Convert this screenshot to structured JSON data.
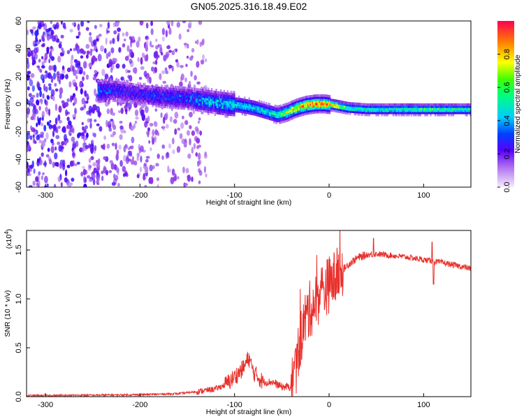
{
  "title": "GN05.2025.316.18.49.E02",
  "chart_data": [
    {
      "type": "heatmap",
      "title": "GN05.2025.316.18.49.E02",
      "xlabel": "Height of straight line (km)",
      "ylabel": "Frequency (Hz)",
      "xlim": [
        -320,
        150
      ],
      "ylim": [
        -60,
        60
      ],
      "x_ticks": [
        -300,
        -200,
        -100,
        0,
        100
      ],
      "y_ticks": [
        -60,
        -40,
        -20,
        0,
        20,
        40,
        60
      ],
      "colorbar": {
        "label": "Normalized spectral amplitude",
        "range": [
          0.0,
          1.0
        ],
        "ticks": [
          0.0,
          0.2,
          0.4,
          0.6,
          0.8
        ],
        "colormap": [
          "#f0e6ff",
          "#8a2be2",
          "#3a00ff",
          "#0060ff",
          "#00e0ff",
          "#00ff60",
          "#ffff00",
          "#ff8000",
          "#ff0040"
        ]
      },
      "ridge": {
        "x": [
          -245,
          -230,
          -215,
          -200,
          -185,
          -170,
          -150,
          -130,
          -110,
          -95,
          -80,
          -65,
          -55,
          -45,
          -35,
          -25,
          -15,
          -5,
          5,
          20,
          40,
          60,
          80,
          100,
          120,
          150
        ],
        "y": [
          10,
          11,
          10,
          8,
          7,
          6,
          5,
          3,
          1,
          0,
          -2,
          -5,
          -7,
          -5,
          -2,
          0,
          1,
          1,
          0,
          -2,
          -3,
          -3,
          -3,
          -3,
          -3,
          -3
        ],
        "amp": [
          0.35,
          0.3,
          0.25,
          0.25,
          0.3,
          0.3,
          0.35,
          0.45,
          0.5,
          0.5,
          0.5,
          0.5,
          0.6,
          0.7,
          0.8,
          0.85,
          0.9,
          0.85,
          0.8,
          0.6,
          0.55,
          0.55,
          0.6,
          0.6,
          0.6,
          0.55
        ]
      },
      "noise_extent_km": [
        -320,
        -130
      ]
    },
    {
      "type": "line",
      "xlabel": "Height of straight line (km)",
      "ylabel": "SNR (10 * v/v)",
      "y_multiplier": "(x10",
      "y_multiplier_exp": "4",
      "xlim": [
        -320,
        150
      ],
      "ylim": [
        0,
        1.7
      ],
      "x_ticks": [
        -300,
        -200,
        -100,
        0,
        100
      ],
      "y_ticks": [
        0.0,
        0.5,
        1.0,
        1.5
      ],
      "color": "#e8302c",
      "series": [
        {
          "x": [
            -320,
            -250,
            -200,
            -160,
            -140,
            -120,
            -110,
            -100,
            -90,
            -85,
            -80,
            -70,
            -60,
            -50,
            -40,
            -35,
            -30,
            -25,
            -20,
            -15,
            -10,
            -5,
            0,
            5,
            10,
            15,
            20,
            30,
            40,
            50,
            60,
            80,
            100,
            120,
            150
          ],
          "y": [
            0.01,
            0.015,
            0.02,
            0.03,
            0.05,
            0.08,
            0.12,
            0.2,
            0.3,
            0.4,
            0.25,
            0.15,
            0.15,
            0.1,
            0.1,
            0.3,
            0.6,
            0.8,
            0.9,
            0.95,
            1.05,
            1.1,
            1.15,
            1.2,
            1.25,
            1.3,
            1.35,
            1.42,
            1.45,
            1.46,
            1.45,
            1.43,
            1.4,
            1.37,
            1.31
          ]
        }
      ]
    }
  ]
}
